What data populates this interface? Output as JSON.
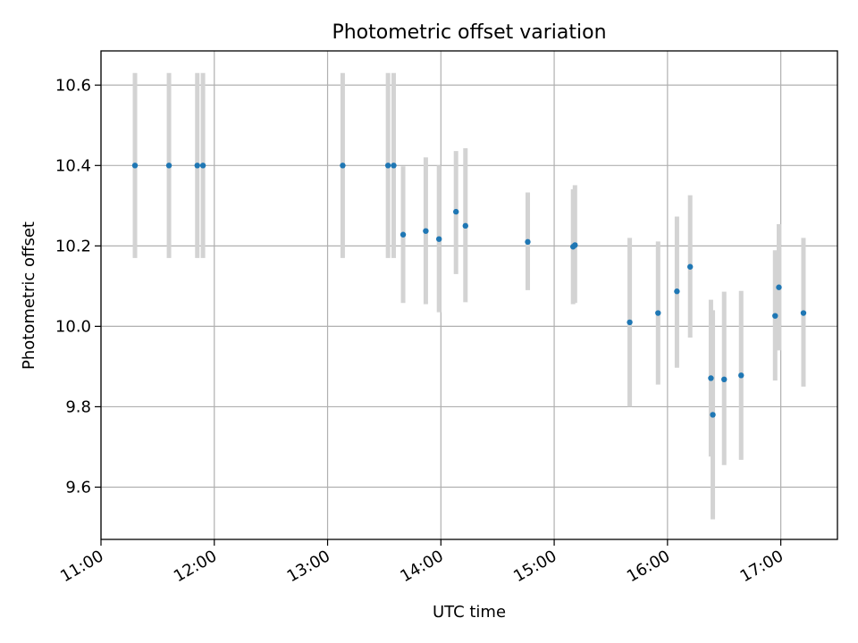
{
  "chart_data": {
    "type": "scatter",
    "title": "Photometric offset variation",
    "xlabel": "UTC time",
    "ylabel": "Photometric offset",
    "x_tick_labels": [
      "11:00",
      "12:00",
      "13:00",
      "14:00",
      "15:00",
      "16:00",
      "17:00"
    ],
    "y_tick_labels": [
      "9.6",
      "9.8",
      "10.0",
      "10.2",
      "10.4",
      "10.6"
    ],
    "y_ticks": [
      9.6,
      9.8,
      10.0,
      10.2,
      10.4,
      10.6
    ],
    "xlim": [
      "11:00",
      "17:30"
    ],
    "ylim": [
      9.47,
      10.685
    ],
    "grid": true,
    "point_color": "#1f77b4",
    "errorbar_color": "#d3d3d3",
    "series": [
      {
        "points": [
          {
            "t": "11:18",
            "y": 10.4,
            "lo": 10.17,
            "hi": 10.63
          },
          {
            "t": "11:36",
            "y": 10.4,
            "lo": 10.17,
            "hi": 10.63
          },
          {
            "t": "11:51",
            "y": 10.4,
            "lo": 10.17,
            "hi": 10.63
          },
          {
            "t": "11:54",
            "y": 10.4,
            "lo": 10.17,
            "hi": 10.63
          },
          {
            "t": "13:08",
            "y": 10.4,
            "lo": 10.17,
            "hi": 10.63
          },
          {
            "t": "13:32",
            "y": 10.4,
            "lo": 10.17,
            "hi": 10.63
          },
          {
            "t": "13:35",
            "y": 10.4,
            "lo": 10.17,
            "hi": 10.63
          },
          {
            "t": "13:40",
            "y": 10.228,
            "lo": 10.058,
            "hi": 10.398
          },
          {
            "t": "13:52",
            "y": 10.237,
            "lo": 10.055,
            "hi": 10.42
          },
          {
            "t": "13:59",
            "y": 10.217,
            "lo": 10.035,
            "hi": 10.4
          },
          {
            "t": "14:08",
            "y": 10.285,
            "lo": 10.13,
            "hi": 10.436
          },
          {
            "t": "14:13",
            "y": 10.25,
            "lo": 10.06,
            "hi": 10.443
          },
          {
            "t": "14:46",
            "y": 10.21,
            "lo": 10.09,
            "hi": 10.333
          },
          {
            "t": "15:10",
            "y": 10.198,
            "lo": 10.055,
            "hi": 10.341
          },
          {
            "t": "15:11",
            "y": 10.202,
            "lo": 10.058,
            "hi": 10.351
          },
          {
            "t": "15:40",
            "y": 10.01,
            "lo": 9.8,
            "hi": 10.22
          },
          {
            "t": "15:55",
            "y": 10.033,
            "lo": 9.855,
            "hi": 10.211
          },
          {
            "t": "16:05",
            "y": 10.087,
            "lo": 9.897,
            "hi": 10.273
          },
          {
            "t": "16:12",
            "y": 10.148,
            "lo": 9.972,
            "hi": 10.326
          },
          {
            "t": "16:23",
            "y": 9.871,
            "lo": 9.676,
            "hi": 10.066
          },
          {
            "t": "16:24",
            "y": 9.78,
            "lo": 9.52,
            "hi": 10.04
          },
          {
            "t": "16:30",
            "y": 9.868,
            "lo": 9.655,
            "hi": 10.086
          },
          {
            "t": "16:39",
            "y": 9.878,
            "lo": 9.668,
            "hi": 10.088
          },
          {
            "t": "16:57",
            "y": 10.026,
            "lo": 9.865,
            "hi": 10.189
          },
          {
            "t": "16:59",
            "y": 10.097,
            "lo": 9.94,
            "hi": 10.254
          },
          {
            "t": "17:12",
            "y": 10.033,
            "lo": 9.85,
            "hi": 10.22
          }
        ]
      }
    ]
  }
}
